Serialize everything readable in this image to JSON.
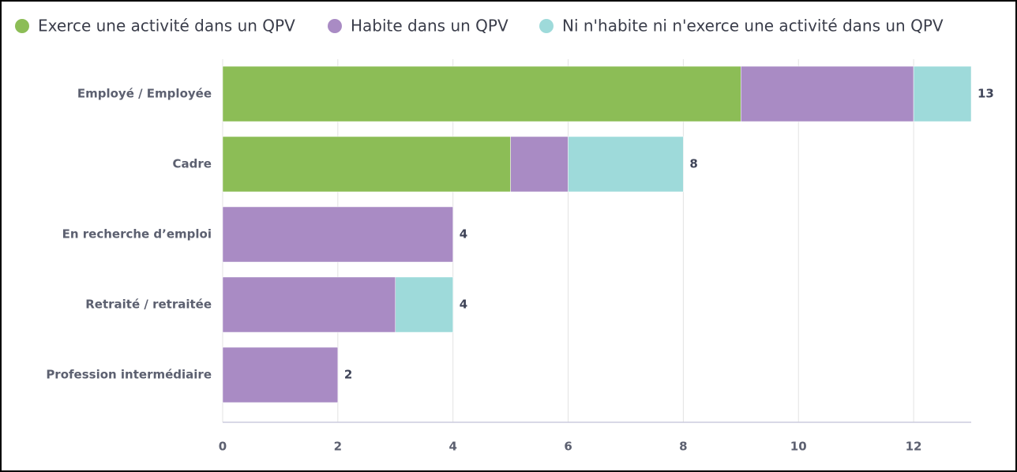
{
  "chart_data": {
    "type": "stacked-barh",
    "categories": [
      "Employé / Employée",
      "Cadre",
      "En recherche d’emploi",
      "Retraité / retraitée",
      "Profession intermédiaire"
    ],
    "series": [
      {
        "name": "Exerce une activité dans un QPV",
        "color": "#8cbd56",
        "values": [
          9,
          5,
          0,
          0,
          0
        ]
      },
      {
        "name": "Habite dans un QPV",
        "color": "#a98bc4",
        "values": [
          3,
          1,
          4,
          3,
          2
        ]
      },
      {
        "name": "Ni n'habite ni n'exerce une activité dans un QPV",
        "color": "#9edada",
        "values": [
          1,
          2,
          0,
          1,
          0
        ]
      }
    ],
    "totals": [
      13,
      8,
      4,
      4,
      2
    ],
    "xlim": [
      0,
      13
    ],
    "xticks": [
      0,
      2,
      4,
      6,
      8,
      10,
      12
    ],
    "grid": true,
    "legend": "top"
  }
}
